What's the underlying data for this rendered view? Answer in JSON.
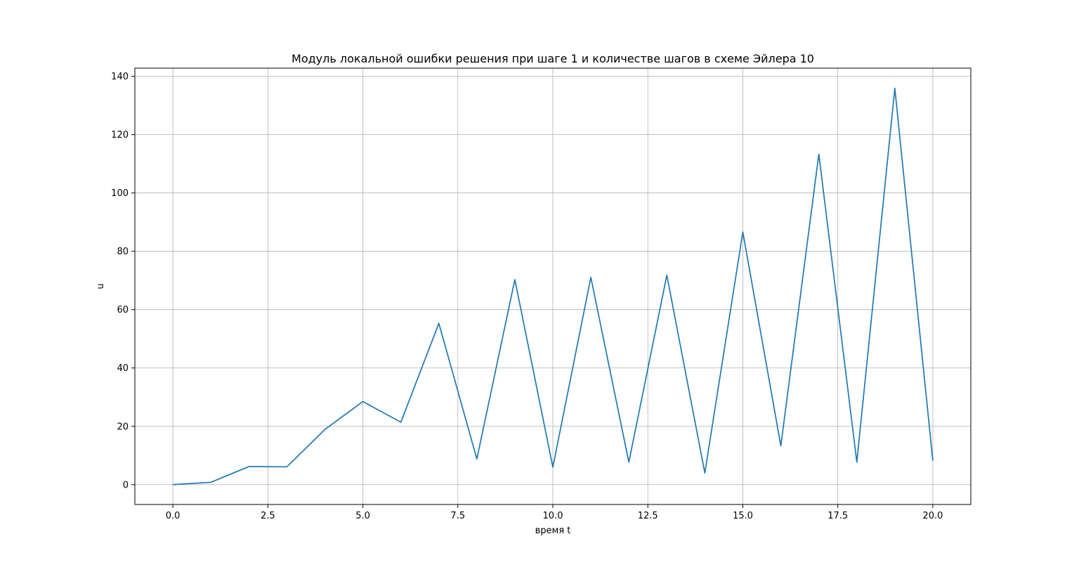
{
  "chart_data": {
    "type": "line",
    "title": "Модуль локальной ошибки решения при шаге 1 и количестве шагов в схеме Эйлера 10",
    "xlabel": "время t",
    "ylabel": "u",
    "xlim": [
      -1.0,
      21.0
    ],
    "ylim": [
      -6.8,
      142.8
    ],
    "grid": true,
    "x_ticks": [
      0.0,
      2.5,
      5.0,
      7.5,
      10.0,
      12.5,
      15.0,
      17.5,
      20.0
    ],
    "x_tick_labels": [
      "0.0",
      "2.5",
      "5.0",
      "7.5",
      "10.0",
      "12.5",
      "15.0",
      "17.5",
      "20.0"
    ],
    "y_ticks": [
      0,
      20,
      40,
      60,
      80,
      100,
      120,
      140
    ],
    "y_tick_labels": [
      "0",
      "20",
      "40",
      "60",
      "80",
      "100",
      "120",
      "140"
    ],
    "series": [
      {
        "color": "#1f77b4",
        "x": [
          0,
          1,
          2,
          3,
          4,
          5,
          6,
          7,
          8,
          9,
          10,
          11,
          12,
          13,
          14,
          15,
          16,
          17,
          18,
          19,
          20
        ],
        "y": [
          0,
          0.8,
          6.2,
          6.1,
          18.9,
          28.5,
          21.4,
          55.3,
          8.8,
          70.3,
          6.0,
          71.1,
          7.7,
          71.8,
          4.0,
          86.6,
          13.3,
          113.3,
          7.7,
          135.9,
          8.2
        ]
      }
    ]
  }
}
